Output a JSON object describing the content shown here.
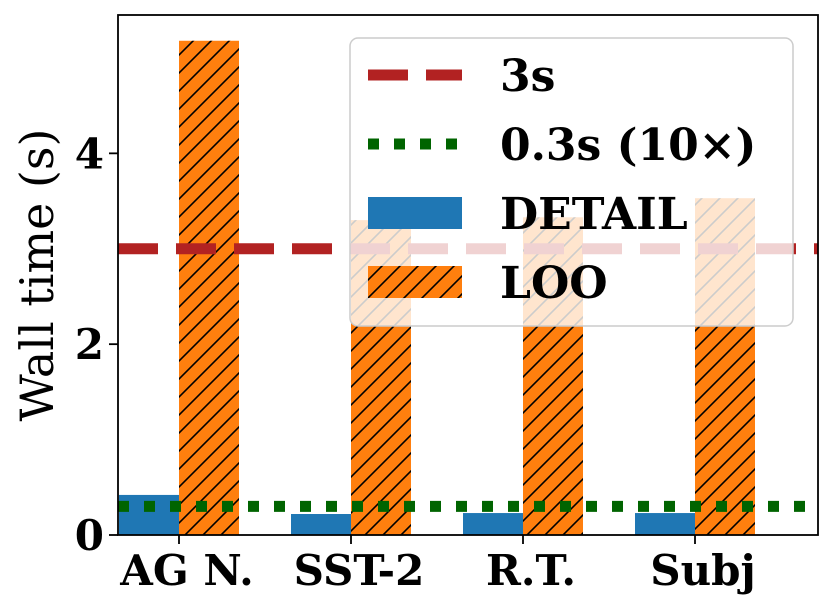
{
  "chart_data": {
    "type": "bar",
    "title": "",
    "xlabel": "",
    "ylabel": "Wall time (s)",
    "categories": [
      "AG N.",
      "SST-2",
      "R.T.",
      "Subj"
    ],
    "ylim": [
      0,
      5.45
    ],
    "yticks": [
      0,
      2,
      4
    ],
    "ytick_labels": [
      "0",
      "2",
      "4"
    ],
    "grid": false,
    "legend_position": "top-right",
    "series": [
      {
        "name": "DETAIL",
        "values": [
          0.42,
          0.22,
          0.23,
          0.23
        ],
        "color": "#1f77b4",
        "hatch": "none"
      },
      {
        "name": "LOO",
        "values": [
          5.18,
          3.3,
          3.33,
          3.53
        ],
        "color": "#ff7f0e",
        "hatch": "diagonal"
      }
    ],
    "reference_lines": [
      {
        "name": "3s",
        "value": 3.0,
        "color": "#b22222",
        "style": "dashed"
      },
      {
        "name": "0.3s (10×)",
        "value": 0.3,
        "color": "#006400",
        "style": "dotted"
      }
    ],
    "legend_order": [
      "3s",
      "0.3s (10×)",
      "DETAIL",
      "LOO"
    ]
  }
}
